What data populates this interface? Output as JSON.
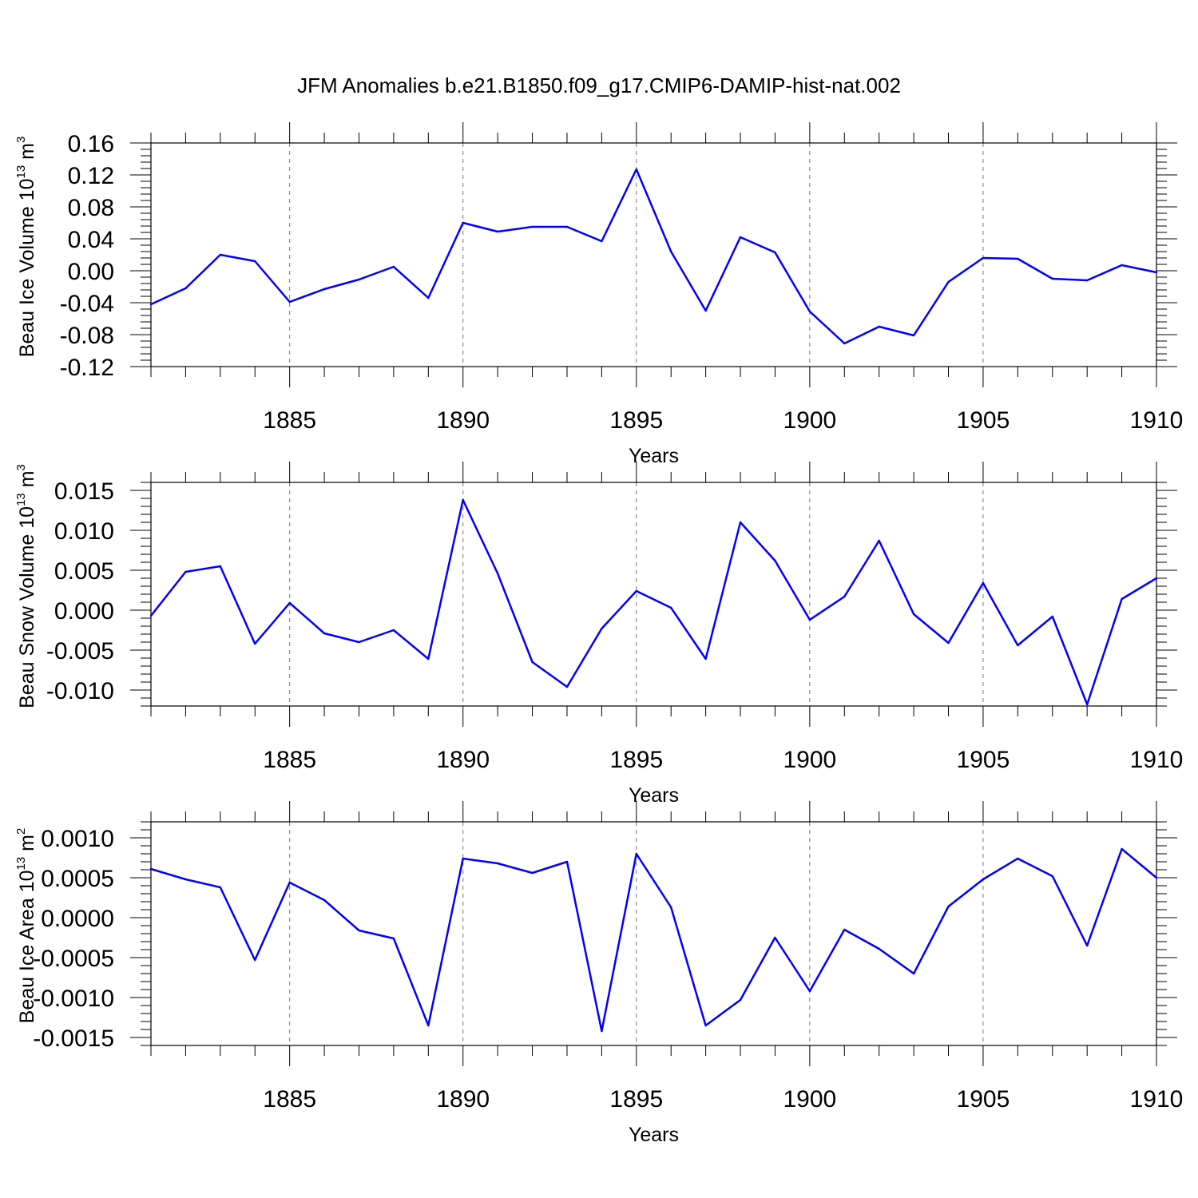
{
  "title": "JFM Anomalies b.e21.B1850.f09_g17.CMIP6-DAMIP-hist-nat.002",
  "colors": {
    "line": "#0000ff",
    "grid": "#777777",
    "frame": "#000000"
  },
  "chart_data": [
    {
      "type": "line",
      "ylabel": "Beau Ice Volume 10",
      "ylabel_sup": "13",
      "ylabel_unit": "m",
      "ylabel_unit_sup": "3",
      "xlabel": "Years",
      "xlim": [
        1881,
        1910
      ],
      "ylim": [
        -0.12,
        0.16
      ],
      "yticks": [
        -0.12,
        -0.08,
        -0.04,
        0.0,
        0.04,
        0.08,
        0.12,
        0.16
      ],
      "ytick_labels": [
        "-0.12",
        "-0.08",
        "-0.04",
        "0.00",
        "0.04",
        "0.08",
        "0.12",
        "0.16"
      ],
      "xticks": [
        1885,
        1890,
        1895,
        1900,
        1905,
        1910
      ],
      "xtick_labels": [
        "1885",
        "1890",
        "1895",
        "1900",
        "1905",
        "1910"
      ],
      "grid": "vertical-dashed",
      "x": [
        1881,
        1882,
        1883,
        1884,
        1885,
        1886,
        1887,
        1888,
        1889,
        1890,
        1891,
        1892,
        1893,
        1894,
        1895,
        1896,
        1897,
        1898,
        1899,
        1900,
        1901,
        1902,
        1903,
        1904,
        1905,
        1906,
        1907,
        1908,
        1909,
        1910
      ],
      "values": [
        -0.042,
        -0.022,
        0.02,
        0.012,
        -0.039,
        -0.023,
        -0.011,
        0.005,
        -0.034,
        0.06,
        0.049,
        0.055,
        0.055,
        0.037,
        0.127,
        0.024,
        -0.05,
        0.042,
        0.023,
        -0.051,
        -0.091,
        -0.07,
        -0.081,
        -0.014,
        0.016,
        0.015,
        -0.01,
        -0.012,
        0.007,
        -0.002
      ]
    },
    {
      "type": "line",
      "ylabel": "Beau Snow Volume 10",
      "ylabel_sup": "13",
      "ylabel_unit": "m",
      "ylabel_unit_sup": "3",
      "xlabel": "Years",
      "xlim": [
        1881,
        1910
      ],
      "ylim": [
        -0.012,
        0.016
      ],
      "yticks": [
        -0.01,
        -0.005,
        0.0,
        0.005,
        0.01,
        0.015
      ],
      "ytick_labels": [
        "-0.010",
        "-0.005",
        "0.000",
        "0.005",
        "0.010",
        "0.015"
      ],
      "xticks": [
        1885,
        1890,
        1895,
        1900,
        1905,
        1910
      ],
      "xtick_labels": [
        "1885",
        "1890",
        "1895",
        "1900",
        "1905",
        "1910"
      ],
      "grid": "vertical-dashed",
      "x": [
        1881,
        1882,
        1883,
        1884,
        1885,
        1886,
        1887,
        1888,
        1889,
        1890,
        1891,
        1892,
        1893,
        1894,
        1895,
        1896,
        1897,
        1898,
        1899,
        1900,
        1901,
        1902,
        1903,
        1904,
        1905,
        1906,
        1907,
        1908,
        1909,
        1910
      ],
      "values": [
        -0.0007,
        0.0048,
        0.0055,
        -0.0042,
        0.0009,
        -0.0029,
        -0.004,
        -0.0025,
        -0.0061,
        0.0138,
        0.0046,
        -0.0065,
        -0.0096,
        -0.0023,
        0.0024,
        0.0003,
        -0.0061,
        0.011,
        0.0062,
        -0.0012,
        0.0017,
        0.0087,
        -0.0005,
        -0.0041,
        0.0034,
        -0.0044,
        -0.0008,
        -0.0118,
        0.0014,
        0.004
      ]
    },
    {
      "type": "line",
      "ylabel": "Beau Ice Area 10",
      "ylabel_sup": "13",
      "ylabel_unit": "m",
      "ylabel_unit_sup": "2",
      "xlabel": "Years",
      "xlim": [
        1881,
        1910
      ],
      "ylim": [
        -0.0016,
        0.0012
      ],
      "yticks": [
        -0.0015,
        -0.001,
        -0.0005,
        0.0,
        0.0005,
        0.001
      ],
      "ytick_labels": [
        "-0.0015",
        "-0.0010",
        "-0.0005",
        "0.0000",
        "0.0005",
        "0.0010"
      ],
      "xticks": [
        1885,
        1890,
        1895,
        1900,
        1905,
        1910
      ],
      "xtick_labels": [
        "1885",
        "1890",
        "1895",
        "1900",
        "1905",
        "1910"
      ],
      "grid": "vertical-dashed",
      "x": [
        1881,
        1882,
        1883,
        1884,
        1885,
        1886,
        1887,
        1888,
        1889,
        1890,
        1891,
        1892,
        1893,
        1894,
        1895,
        1896,
        1897,
        1898,
        1899,
        1900,
        1901,
        1902,
        1903,
        1904,
        1905,
        1906,
        1907,
        1908,
        1909,
        1910
      ],
      "values": [
        0.00061,
        0.00048,
        0.00038,
        -0.00053,
        0.00044,
        0.00022,
        -0.00016,
        -0.00026,
        -0.00135,
        0.00074,
        0.00068,
        0.00056,
        0.0007,
        -0.00142,
        0.0008,
        0.00013,
        -0.00135,
        -0.00103,
        -0.00025,
        -0.00092,
        -0.00015,
        -0.00039,
        -0.0007,
        0.00014,
        0.00048,
        0.00074,
        0.00052,
        -0.00035,
        0.00086,
        0.0005
      ]
    }
  ]
}
